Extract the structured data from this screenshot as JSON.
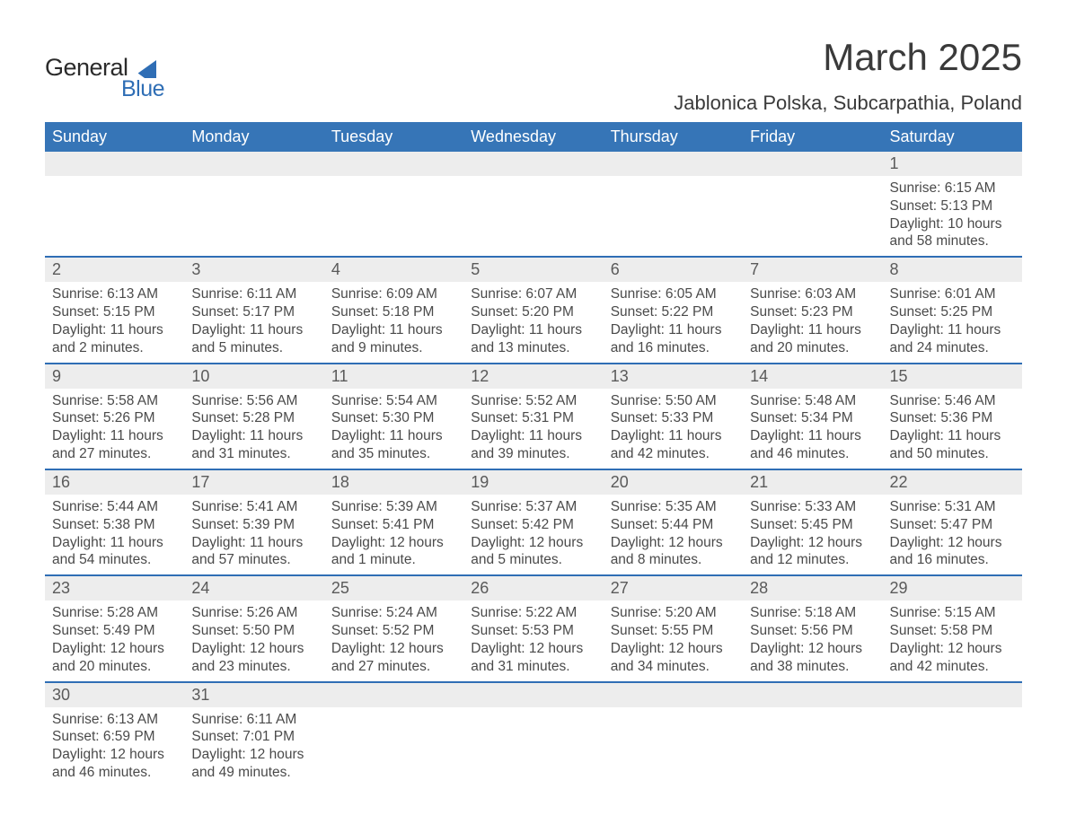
{
  "brand": {
    "word1": "General",
    "word2": "Blue",
    "color_primary": "#2f6eb5"
  },
  "title": "March 2025",
  "location": "Jablonica Polska, Subcarpathia, Poland",
  "header_bg": "#3675b7",
  "header_fg": "#ffffff",
  "daynum_bg": "#ededed",
  "week_border": "#2f6eb5",
  "text_color": "#4a4a4a",
  "columns": [
    "Sunday",
    "Monday",
    "Tuesday",
    "Wednesday",
    "Thursday",
    "Friday",
    "Saturday"
  ],
  "weeks": [
    [
      null,
      null,
      null,
      null,
      null,
      null,
      {
        "n": "1",
        "sr": "6:15 AM",
        "ss": "5:13 PM",
        "dl": "10 hours and 58 minutes."
      }
    ],
    [
      {
        "n": "2",
        "sr": "6:13 AM",
        "ss": "5:15 PM",
        "dl": "11 hours and 2 minutes."
      },
      {
        "n": "3",
        "sr": "6:11 AM",
        "ss": "5:17 PM",
        "dl": "11 hours and 5 minutes."
      },
      {
        "n": "4",
        "sr": "6:09 AM",
        "ss": "5:18 PM",
        "dl": "11 hours and 9 minutes."
      },
      {
        "n": "5",
        "sr": "6:07 AM",
        "ss": "5:20 PM",
        "dl": "11 hours and 13 minutes."
      },
      {
        "n": "6",
        "sr": "6:05 AM",
        "ss": "5:22 PM",
        "dl": "11 hours and 16 minutes."
      },
      {
        "n": "7",
        "sr": "6:03 AM",
        "ss": "5:23 PM",
        "dl": "11 hours and 20 minutes."
      },
      {
        "n": "8",
        "sr": "6:01 AM",
        "ss": "5:25 PM",
        "dl": "11 hours and 24 minutes."
      }
    ],
    [
      {
        "n": "9",
        "sr": "5:58 AM",
        "ss": "5:26 PM",
        "dl": "11 hours and 27 minutes."
      },
      {
        "n": "10",
        "sr": "5:56 AM",
        "ss": "5:28 PM",
        "dl": "11 hours and 31 minutes."
      },
      {
        "n": "11",
        "sr": "5:54 AM",
        "ss": "5:30 PM",
        "dl": "11 hours and 35 minutes."
      },
      {
        "n": "12",
        "sr": "5:52 AM",
        "ss": "5:31 PM",
        "dl": "11 hours and 39 minutes."
      },
      {
        "n": "13",
        "sr": "5:50 AM",
        "ss": "5:33 PM",
        "dl": "11 hours and 42 minutes."
      },
      {
        "n": "14",
        "sr": "5:48 AM",
        "ss": "5:34 PM",
        "dl": "11 hours and 46 minutes."
      },
      {
        "n": "15",
        "sr": "5:46 AM",
        "ss": "5:36 PM",
        "dl": "11 hours and 50 minutes."
      }
    ],
    [
      {
        "n": "16",
        "sr": "5:44 AM",
        "ss": "5:38 PM",
        "dl": "11 hours and 54 minutes."
      },
      {
        "n": "17",
        "sr": "5:41 AM",
        "ss": "5:39 PM",
        "dl": "11 hours and 57 minutes."
      },
      {
        "n": "18",
        "sr": "5:39 AM",
        "ss": "5:41 PM",
        "dl": "12 hours and 1 minute."
      },
      {
        "n": "19",
        "sr": "5:37 AM",
        "ss": "5:42 PM",
        "dl": "12 hours and 5 minutes."
      },
      {
        "n": "20",
        "sr": "5:35 AM",
        "ss": "5:44 PM",
        "dl": "12 hours and 8 minutes."
      },
      {
        "n": "21",
        "sr": "5:33 AM",
        "ss": "5:45 PM",
        "dl": "12 hours and 12 minutes."
      },
      {
        "n": "22",
        "sr": "5:31 AM",
        "ss": "5:47 PM",
        "dl": "12 hours and 16 minutes."
      }
    ],
    [
      {
        "n": "23",
        "sr": "5:28 AM",
        "ss": "5:49 PM",
        "dl": "12 hours and 20 minutes."
      },
      {
        "n": "24",
        "sr": "5:26 AM",
        "ss": "5:50 PM",
        "dl": "12 hours and 23 minutes."
      },
      {
        "n": "25",
        "sr": "5:24 AM",
        "ss": "5:52 PM",
        "dl": "12 hours and 27 minutes."
      },
      {
        "n": "26",
        "sr": "5:22 AM",
        "ss": "5:53 PM",
        "dl": "12 hours and 31 minutes."
      },
      {
        "n": "27",
        "sr": "5:20 AM",
        "ss": "5:55 PM",
        "dl": "12 hours and 34 minutes."
      },
      {
        "n": "28",
        "sr": "5:18 AM",
        "ss": "5:56 PM",
        "dl": "12 hours and 38 minutes."
      },
      {
        "n": "29",
        "sr": "5:15 AM",
        "ss": "5:58 PM",
        "dl": "12 hours and 42 minutes."
      }
    ],
    [
      {
        "n": "30",
        "sr": "6:13 AM",
        "ss": "6:59 PM",
        "dl": "12 hours and 46 minutes."
      },
      {
        "n": "31",
        "sr": "6:11 AM",
        "ss": "7:01 PM",
        "dl": "12 hours and 49 minutes."
      },
      null,
      null,
      null,
      null,
      null
    ]
  ],
  "labels": {
    "sunrise": "Sunrise:",
    "sunset": "Sunset:",
    "daylight": "Daylight:"
  }
}
